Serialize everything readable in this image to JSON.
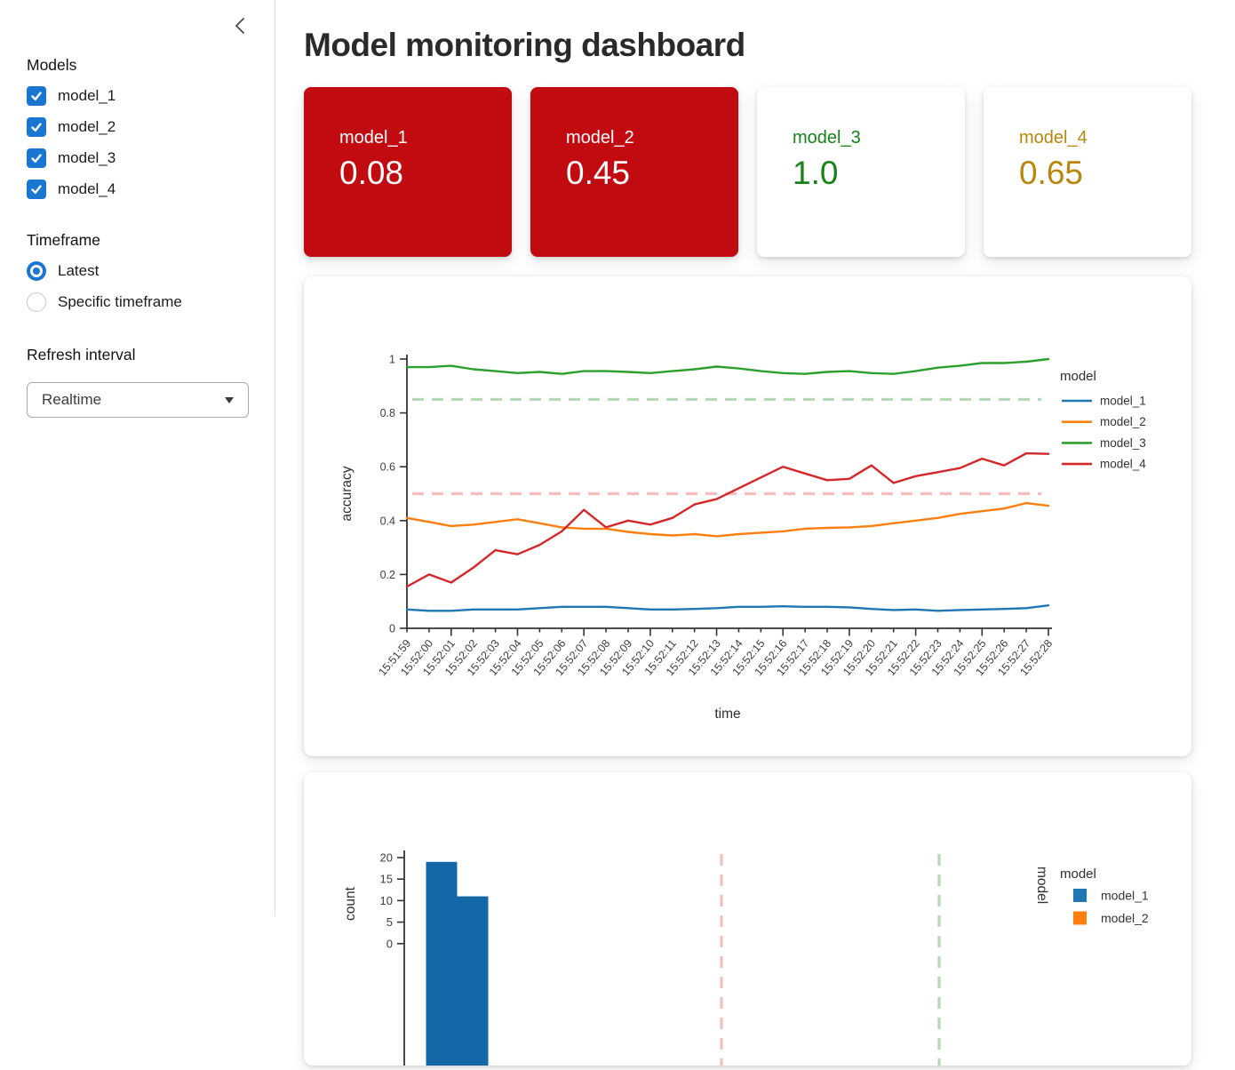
{
  "sidebar": {
    "models_label": "Models",
    "model_checkboxes": [
      {
        "label": "model_1",
        "checked": true
      },
      {
        "label": "model_2",
        "checked": true
      },
      {
        "label": "model_3",
        "checked": true
      },
      {
        "label": "model_4",
        "checked": true
      }
    ],
    "timeframe_label": "Timeframe",
    "timeframe_options": [
      {
        "label": "Latest",
        "selected": true
      },
      {
        "label": "Specific timeframe",
        "selected": false
      }
    ],
    "refresh_interval_label": "Refresh interval",
    "refresh_interval_value": "Realtime",
    "accent_color": "#1976d2"
  },
  "header": {
    "title": "Model monitoring dashboard"
  },
  "metric_cards": [
    {
      "label": "model_1",
      "value": "0.08",
      "bg": "#c20b10",
      "fg": "#ffffff"
    },
    {
      "label": "model_2",
      "value": "0.45",
      "bg": "#c20b10",
      "fg": "#ffffff"
    },
    {
      "label": "model_3",
      "value": "1.0",
      "bg": "#ffffff",
      "fg": "#178217"
    },
    {
      "label": "model_4",
      "value": "0.65",
      "bg": "#ffffff",
      "fg": "#b8860b"
    }
  ],
  "chart_data": [
    {
      "type": "line",
      "title": "",
      "xlabel": "time",
      "ylabel": "accuracy",
      "ylim": [
        0,
        1
      ],
      "yticks": [
        0,
        0.2,
        0.4,
        0.6,
        0.8,
        1
      ],
      "legend_title": "model",
      "legend_position": "right",
      "grid": false,
      "x": [
        "15:51:59",
        "15:52:00",
        "15:52:01",
        "15:52:02",
        "15:52:03",
        "15:52:04",
        "15:52:05",
        "15:52:06",
        "15:52:07",
        "15:52:08",
        "15:52:09",
        "15:52:10",
        "15:52:11",
        "15:52:12",
        "15:52:13",
        "15:52:14",
        "15:52:15",
        "15:52:16",
        "15:52:17",
        "15:52:18",
        "15:52:19",
        "15:52:20",
        "15:52:21",
        "15:52:22",
        "15:52:23",
        "15:52:24",
        "15:52:25",
        "15:52:26",
        "15:52:27",
        "15:52:28"
      ],
      "series": [
        {
          "name": "model_1",
          "color": "#1f77b4",
          "values": [
            0.07,
            0.065,
            0.065,
            0.07,
            0.07,
            0.07,
            0.075,
            0.08,
            0.08,
            0.08,
            0.075,
            0.07,
            0.07,
            0.072,
            0.075,
            0.08,
            0.08,
            0.082,
            0.08,
            0.08,
            0.078,
            0.072,
            0.068,
            0.07,
            0.065,
            0.068,
            0.07,
            0.072,
            0.075,
            0.085
          ]
        },
        {
          "name": "model_2",
          "color": "#ff7f0e",
          "values": [
            0.41,
            0.395,
            0.38,
            0.385,
            0.395,
            0.405,
            0.39,
            0.375,
            0.37,
            0.37,
            0.358,
            0.35,
            0.345,
            0.35,
            0.342,
            0.35,
            0.355,
            0.36,
            0.37,
            0.373,
            0.375,
            0.38,
            0.39,
            0.4,
            0.41,
            0.425,
            0.435,
            0.445,
            0.465,
            0.455
          ]
        },
        {
          "name": "model_3",
          "color": "#2ca02c",
          "values": [
            0.97,
            0.97,
            0.975,
            0.962,
            0.955,
            0.948,
            0.952,
            0.945,
            0.955,
            0.955,
            0.952,
            0.948,
            0.955,
            0.962,
            0.972,
            0.965,
            0.955,
            0.948,
            0.945,
            0.952,
            0.955,
            0.948,
            0.945,
            0.955,
            0.968,
            0.975,
            0.985,
            0.985,
            0.99,
            1.0
          ]
        },
        {
          "name": "model_4",
          "color": "#d62728",
          "values": [
            0.155,
            0.2,
            0.17,
            0.225,
            0.29,
            0.275,
            0.31,
            0.36,
            0.44,
            0.375,
            0.4,
            0.385,
            0.41,
            0.46,
            0.48,
            0.52,
            0.56,
            0.6,
            0.575,
            0.55,
            0.555,
            0.605,
            0.54,
            0.565,
            0.58,
            0.595,
            0.63,
            0.605,
            0.65,
            0.648
          ]
        }
      ],
      "hlines": [
        {
          "y": 0.85,
          "color": "#b5d9b5"
        },
        {
          "y": 0.5,
          "color": "#f5bdbd"
        }
      ]
    },
    {
      "type": "bar",
      "subtype": "histogram",
      "ylabel": "count",
      "row_label": "model",
      "legend_title": "model",
      "legend_items": [
        {
          "label": "model_1",
          "color": "#1f77b4"
        },
        {
          "label": "model_2",
          "color": "#ff7f0e"
        }
      ],
      "bar_color": "#1568a8",
      "bins": [
        {
          "range": [
            0.025,
            0.075
          ],
          "count": 19
        },
        {
          "range": [
            0.075,
            0.125
          ],
          "count": 11
        }
      ],
      "yticks_visible": [
        10,
        15,
        20
      ],
      "vlines": [
        {
          "x": 0.5,
          "color": "#f5bdbd"
        },
        {
          "x": 0.85,
          "color": "#b5d9b5"
        }
      ]
    }
  ]
}
